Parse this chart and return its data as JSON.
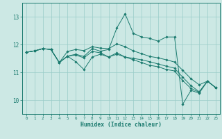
{
  "xlabel": "Humidex (Indice chaleur)",
  "background_color": "#cce8e4",
  "grid_color": "#99ccc8",
  "line_color": "#1a7a6e",
  "xlim": [
    -0.5,
    23.5
  ],
  "ylim": [
    9.5,
    13.5
  ],
  "yticks": [
    10,
    11,
    12,
    13
  ],
  "xticks": [
    0,
    1,
    2,
    3,
    4,
    5,
    6,
    7,
    8,
    9,
    10,
    11,
    12,
    13,
    14,
    15,
    16,
    17,
    18,
    19,
    20,
    21,
    22,
    23
  ],
  "series": [
    [
      11.72,
      11.77,
      11.85,
      11.82,
      11.35,
      11.58,
      11.65,
      11.57,
      11.85,
      11.76,
      11.82,
      12.6,
      13.1,
      12.4,
      12.27,
      12.22,
      12.12,
      12.27,
      12.27,
      9.85,
      10.35,
      10.25,
      10.68,
      10.45
    ],
    [
      11.72,
      11.77,
      11.85,
      11.82,
      11.35,
      11.58,
      11.38,
      11.1,
      11.55,
      11.65,
      11.55,
      11.7,
      11.55,
      11.5,
      11.45,
      11.38,
      11.3,
      11.22,
      11.15,
      10.82,
      10.52,
      10.3,
      10.68,
      10.45
    ],
    [
      11.72,
      11.77,
      11.85,
      11.82,
      11.35,
      11.58,
      11.62,
      11.52,
      11.75,
      11.7,
      11.55,
      11.65,
      11.55,
      11.45,
      11.35,
      11.25,
      11.2,
      11.1,
      11.05,
      10.7,
      10.42,
      10.28,
      10.68,
      10.45
    ],
    [
      11.72,
      11.77,
      11.85,
      11.82,
      11.35,
      11.75,
      11.82,
      11.78,
      11.92,
      11.87,
      11.85,
      12.02,
      11.92,
      11.77,
      11.67,
      11.57,
      11.52,
      11.45,
      11.37,
      11.07,
      10.77,
      10.55,
      10.68,
      10.45
    ]
  ],
  "figsize": [
    3.2,
    2.0
  ],
  "dpi": 100
}
